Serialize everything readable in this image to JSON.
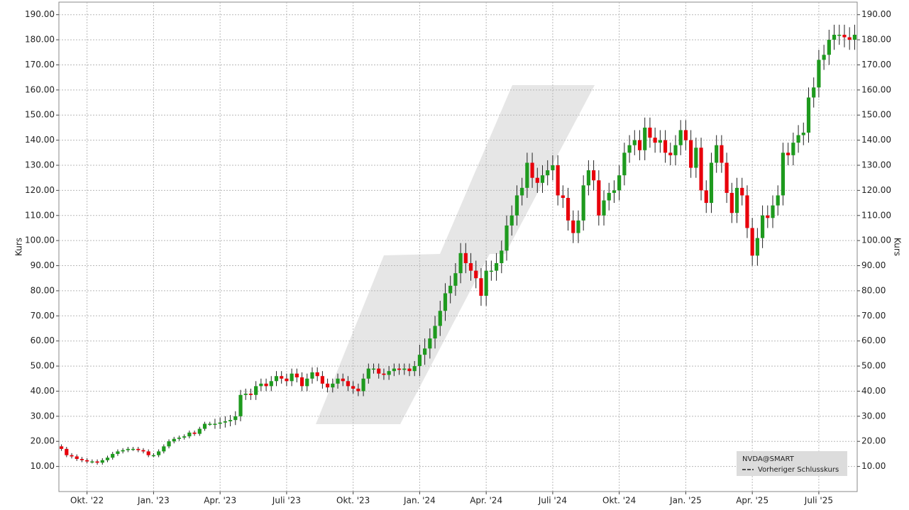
{
  "chart_data": {
    "type": "candlestick",
    "y_label": "Kurs",
    "y2_label": "Kurs",
    "series_name": "NVDA@SMART",
    "legend_items": [
      "Vorheriger Schlusskurs"
    ],
    "up_color": "#1e9a1e",
    "down_color": "#e8000b",
    "grid": true,
    "ylim": [
      0,
      195
    ],
    "yticks": [
      {
        "value": 10,
        "label": "10.00"
      },
      {
        "value": 20,
        "label": "20.00"
      },
      {
        "value": 30,
        "label": "30.00"
      },
      {
        "value": 40,
        "label": "40.00"
      },
      {
        "value": 50,
        "label": "50.00"
      },
      {
        "value": 60,
        "label": "60.00"
      },
      {
        "value": 70,
        "label": "70.00"
      },
      {
        "value": 80,
        "label": "80.00"
      },
      {
        "value": 90,
        "label": "90.00"
      },
      {
        "value": 100,
        "label": "100.00"
      },
      {
        "value": 110,
        "label": "110.00"
      },
      {
        "value": 120,
        "label": "120.00"
      },
      {
        "value": 130,
        "label": "130.00"
      },
      {
        "value": 140,
        "label": "140.00"
      },
      {
        "value": 150,
        "label": "150.00"
      },
      {
        "value": 160,
        "label": "160.00"
      },
      {
        "value": 170,
        "label": "170.00"
      },
      {
        "value": 180,
        "label": "180.00"
      },
      {
        "value": 190,
        "label": "190.00"
      }
    ],
    "categories": [
      null,
      null,
      null,
      null,
      null,
      "Okt. '22",
      null,
      null,
      null,
      null,
      null,
      null,
      null,
      null,
      null,
      null,
      null,
      null,
      "Jan. '23",
      null,
      null,
      null,
      null,
      null,
      null,
      null,
      null,
      null,
      null,
      null,
      null,
      "Apr. '23",
      null,
      null,
      null,
      null,
      null,
      null,
      null,
      null,
      null,
      null,
      null,
      null,
      "Juli '23",
      null,
      null,
      null,
      null,
      null,
      null,
      null,
      null,
      null,
      null,
      null,
      null,
      "Okt. '23",
      null,
      null,
      null,
      null,
      null,
      null,
      null,
      null,
      null,
      null,
      null,
      null,
      "Jan. '24",
      null,
      null,
      null,
      null,
      null,
      null,
      null,
      null,
      null,
      null,
      null,
      null,
      "Apr. '24",
      null,
      null,
      null,
      null,
      null,
      null,
      null,
      null,
      null,
      null,
      null,
      null,
      "Juli '24",
      null,
      null,
      null,
      null,
      null,
      null,
      null,
      null,
      null,
      null,
      null,
      null,
      "Okt. '24",
      null,
      null,
      null,
      null,
      null,
      null,
      null,
      null,
      null,
      null,
      null,
      null,
      "Jan. '25",
      null,
      null,
      null,
      null,
      null,
      null,
      null,
      null,
      null,
      null,
      null,
      null,
      "Apr. '25",
      null,
      null,
      null,
      null,
      null,
      null,
      null,
      null,
      null,
      null,
      null,
      null,
      "Juli '25",
      null,
      null,
      null,
      null,
      null,
      null,
      null
    ],
    "open": [
      18,
      17,
      14.5,
      14,
      13,
      12.5,
      12,
      12,
      11.5,
      12.5,
      13.5,
      15,
      16,
      16.5,
      17,
      17,
      16.5,
      16,
      14.5,
      14.5,
      16,
      18,
      20,
      21,
      21.5,
      22,
      23.5,
      23,
      25,
      27,
      27,
      27,
      27.5,
      28,
      28.5,
      30,
      38.5,
      39,
      38.5,
      42,
      43,
      42,
      44,
      46,
      45,
      44,
      47,
      45.5,
      42,
      45,
      47.5,
      46,
      43,
      41.5,
      43,
      45,
      44,
      42,
      41,
      40,
      45,
      49,
      49,
      47,
      46.5,
      48,
      49,
      48.5,
      49,
      48,
      50,
      54.5,
      57,
      61,
      66,
      72,
      79,
      82,
      87,
      95,
      91,
      88,
      85,
      78,
      88,
      88,
      91,
      96,
      106,
      110,
      118,
      121,
      131,
      125,
      123,
      126,
      128,
      130,
      118,
      117,
      108,
      103,
      108,
      122,
      128,
      124,
      110,
      116,
      119,
      120,
      126,
      135,
      138,
      140,
      136,
      145,
      141,
      139,
      140,
      135,
      134,
      138,
      144,
      140,
      129,
      137,
      120,
      115,
      131,
      138,
      131,
      119,
      111,
      121,
      118,
      105,
      94,
      101,
      110,
      109,
      114,
      118,
      135,
      134,
      139,
      142,
      143,
      157,
      161,
      172,
      174,
      180,
      182,
      182,
      181,
      180
    ],
    "high": [
      18.8,
      17.8,
      15.3,
      14.8,
      13.8,
      13.3,
      12.8,
      12.8,
      13.3,
      14.3,
      15.8,
      16.8,
      17.3,
      17.8,
      17.8,
      17.8,
      17.3,
      16.8,
      15.3,
      16.8,
      18.8,
      20.8,
      21.8,
      22.3,
      22.8,
      24.3,
      24.3,
      25.8,
      27.8,
      27.8,
      29,
      29.5,
      30,
      30.5,
      32,
      40.5,
      41,
      41,
      44,
      45,
      45,
      46,
      48,
      48,
      47,
      49,
      49,
      47.5,
      47,
      49.5,
      49.5,
      48,
      45,
      45,
      47,
      47,
      46,
      44,
      43,
      47,
      51,
      51,
      51,
      49,
      50,
      51,
      51,
      51,
      51,
      52,
      58.5,
      61,
      65,
      70,
      76,
      83,
      86,
      91,
      99,
      99,
      95,
      92,
      89,
      92,
      92,
      95,
      100,
      110,
      114,
      122,
      125,
      135,
      135,
      129,
      130,
      132,
      134,
      134,
      122,
      121,
      112,
      112,
      126,
      132,
      132,
      128,
      120,
      123,
      124,
      130,
      139,
      142,
      144,
      144,
      149,
      149,
      145,
      144,
      144,
      139,
      142,
      148,
      148,
      144,
      141,
      141,
      124,
      135,
      142,
      142,
      135,
      123,
      125,
      125,
      122,
      109,
      105,
      114,
      114,
      118,
      122,
      139,
      139,
      143,
      146,
      147,
      161,
      165,
      176,
      178,
      184,
      186,
      186,
      186,
      185,
      186
    ],
    "low": [
      16.2,
      13.7,
      13.2,
      12.2,
      11.7,
      11.2,
      11.2,
      10.7,
      10.7,
      11.7,
      12.7,
      14.2,
      15.2,
      15.7,
      16.2,
      15.7,
      15.2,
      13.7,
      13.7,
      13.7,
      15.2,
      17.2,
      19.2,
      20.2,
      20.7,
      21.2,
      22.2,
      22.2,
      24.2,
      26.2,
      25,
      25,
      25.5,
      26,
      26.5,
      28,
      36.5,
      36.5,
      36.5,
      40,
      40,
      40,
      42,
      43,
      42,
      42,
      43.5,
      40,
      40,
      43,
      44,
      41,
      39.5,
      39.5,
      41,
      42,
      40,
      39,
      38,
      38,
      43,
      47,
      45,
      44.5,
      44.5,
      46,
      46.5,
      46.5,
      46,
      46,
      46,
      50.5,
      53,
      57,
      62,
      68,
      75,
      78,
      83,
      87,
      84,
      81,
      74,
      74,
      84,
      84,
      87,
      92,
      102,
      106,
      114,
      117,
      121,
      119,
      119,
      122,
      124,
      114,
      113,
      104,
      99,
      99,
      104,
      118,
      120,
      106,
      106,
      112,
      115,
      116,
      122,
      131,
      134,
      132,
      132,
      137,
      135,
      135,
      131,
      130,
      130,
      134,
      136,
      125,
      125,
      116,
      111,
      111,
      127,
      127,
      115,
      107,
      107,
      114,
      101,
      90,
      90,
      97,
      105,
      105,
      110,
      114,
      130,
      130,
      135,
      138,
      139,
      153,
      157,
      168,
      170,
      176,
      178,
      177,
      176,
      176
    ],
    "close": [
      17,
      14.5,
      14,
      13,
      12.5,
      12,
      12,
      11.5,
      12.5,
      13.5,
      15,
      16,
      16.5,
      17,
      17,
      16.5,
      16,
      14.5,
      14.5,
      16,
      18,
      20,
      21,
      21.5,
      22,
      23.5,
      23,
      25,
      27,
      27,
      27,
      27.5,
      28,
      28.5,
      30,
      38.5,
      39,
      38.5,
      42,
      43,
      42,
      44,
      46,
      45,
      44,
      47,
      45.5,
      42,
      45,
      47.5,
      46,
      43,
      41.5,
      43,
      45,
      44,
      42,
      41,
      40,
      45,
      49,
      49,
      47,
      46.5,
      48,
      49,
      48.5,
      49,
      48,
      50,
      54.5,
      57,
      61,
      66,
      72,
      79,
      82,
      87,
      95,
      91,
      88,
      85,
      78,
      88,
      88,
      91,
      96,
      106,
      110,
      118,
      121,
      131,
      125,
      123,
      126,
      128,
      130,
      118,
      117,
      108,
      103,
      108,
      122,
      128,
      124,
      110,
      116,
      119,
      120,
      126,
      135,
      138,
      140,
      136,
      145,
      141,
      139,
      140,
      135,
      134,
      138,
      144,
      140,
      129,
      137,
      120,
      115,
      131,
      138,
      131,
      119,
      111,
      121,
      118,
      105,
      94,
      101,
      110,
      109,
      114,
      118,
      135,
      134,
      139,
      142,
      143,
      157,
      161,
      172,
      174,
      180,
      182,
      182,
      181,
      180,
      182
    ]
  }
}
